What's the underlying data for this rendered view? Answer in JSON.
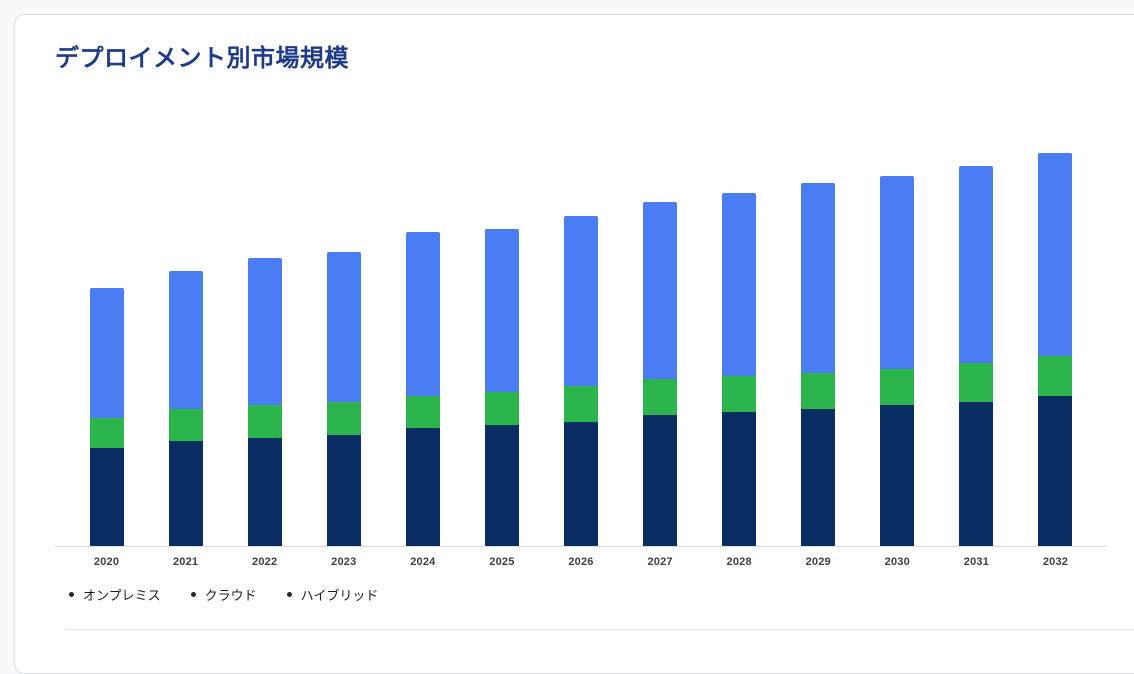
{
  "page": {
    "background": "#f7f8fa",
    "card_background": "#ffffff",
    "card_border": "#d8dee8"
  },
  "header": {
    "title": "デプロイメント別市場規模",
    "title_color": "#1e3a8a"
  },
  "chart_data": {
    "type": "bar",
    "stacked": true,
    "title": "デプロイメント別市場規模",
    "categories": [
      "2020",
      "2021",
      "2022",
      "2023",
      "2024",
      "2025",
      "2026",
      "2027",
      "2028",
      "2029",
      "2030",
      "2031",
      "2032"
    ],
    "series": [
      {
        "key": "onpremise",
        "name": "オンプレミス",
        "color": "#0a2e63",
        "values": [
          15,
          16,
          16.5,
          17,
          18,
          18.5,
          19,
          20,
          20.5,
          21,
          21.5,
          22,
          23
        ]
      },
      {
        "key": "cloud",
        "name": "クラウド",
        "color": "#4a7df2",
        "values": [
          20,
          21,
          22.5,
          23,
          25,
          25,
          26,
          27,
          28,
          29,
          29.5,
          30,
          31
        ]
      },
      {
        "key": "hybrid",
        "name": "ハイブリッド",
        "color": "#2cb54d",
        "values": [
          4.5,
          5,
          5,
          5,
          5,
          5,
          5.5,
          5.5,
          5.5,
          5.5,
          5.5,
          6,
          6
        ]
      }
    ],
    "stack_order_bottom_to_top": [
      "onpremise",
      "hybrid",
      "cloud"
    ],
    "ylim": [
      0,
      68
    ],
    "grid": false,
    "y_axis_labels_visible": false,
    "xlabel": "",
    "ylabel": "",
    "legend_position": "bottom-left",
    "legend_bullet_color": "#1f2937",
    "axis_line_color": "#d9dde2",
    "category_label_color": "#3c4043",
    "legend_label_color": "#202124"
  }
}
